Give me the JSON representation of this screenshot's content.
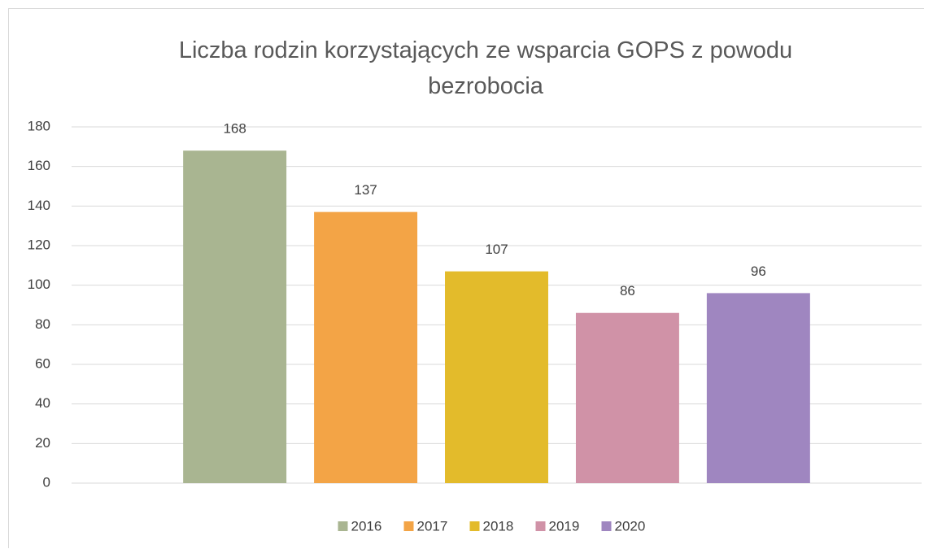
{
  "chart_data": {
    "type": "bar",
    "title": "Liczba rodzin korzystających ze wsparcia GOPS z powodu bezrobocia",
    "categories": [
      null
    ],
    "series": [
      {
        "name": "2016",
        "color": "#a9b591",
        "values": [
          168
        ]
      },
      {
        "name": "2017",
        "color": "#f3a446",
        "values": [
          137
        ]
      },
      {
        "name": "2018",
        "color": "#e3bb2b",
        "values": [
          107
        ]
      },
      {
        "name": "2019",
        "color": "#d092a7",
        "values": [
          86
        ]
      },
      {
        "name": "2020",
        "color": "#9f86c0",
        "values": [
          96
        ]
      }
    ],
    "ylim": [
      0,
      180
    ],
    "yticks": [
      0,
      20,
      40,
      60,
      80,
      100,
      120,
      140,
      160,
      180
    ],
    "grid": true,
    "legend": "bottom"
  }
}
